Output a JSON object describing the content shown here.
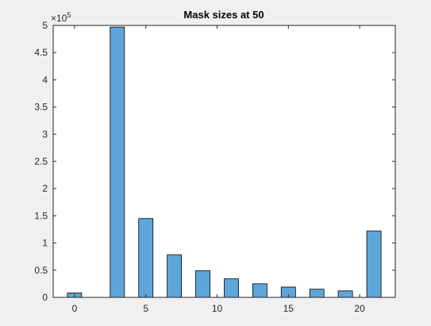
{
  "chart_data": {
    "type": "bar",
    "title": "Mask sizes at 50",
    "xlabel": "",
    "ylabel": "",
    "x": [
      0,
      3,
      5,
      7,
      9,
      11,
      13,
      15,
      17,
      19,
      21
    ],
    "values": [
      8000,
      497000,
      145000,
      78000,
      49000,
      34000,
      25000,
      19000,
      15000,
      12000,
      122000
    ],
    "xlim": [
      -1.5,
      22.5
    ],
    "ylim": [
      0,
      500000
    ],
    "xticks": [
      0,
      5,
      10,
      15,
      20
    ],
    "xtick_labels": [
      "0",
      "5",
      "10",
      "15",
      "20"
    ],
    "yticks": [
      0,
      50000,
      100000,
      150000,
      200000,
      250000,
      300000,
      350000,
      400000,
      450000,
      500000
    ],
    "ytick_labels": [
      "0",
      "0.5",
      "1",
      "1.5",
      "2",
      "2.5",
      "3",
      "3.5",
      "4",
      "4.5",
      "5"
    ],
    "y_exponent": "×10",
    "y_exponent_power": "5",
    "grid": false,
    "bar_color": "#5ea6d9",
    "edge_color": "#000000"
  }
}
